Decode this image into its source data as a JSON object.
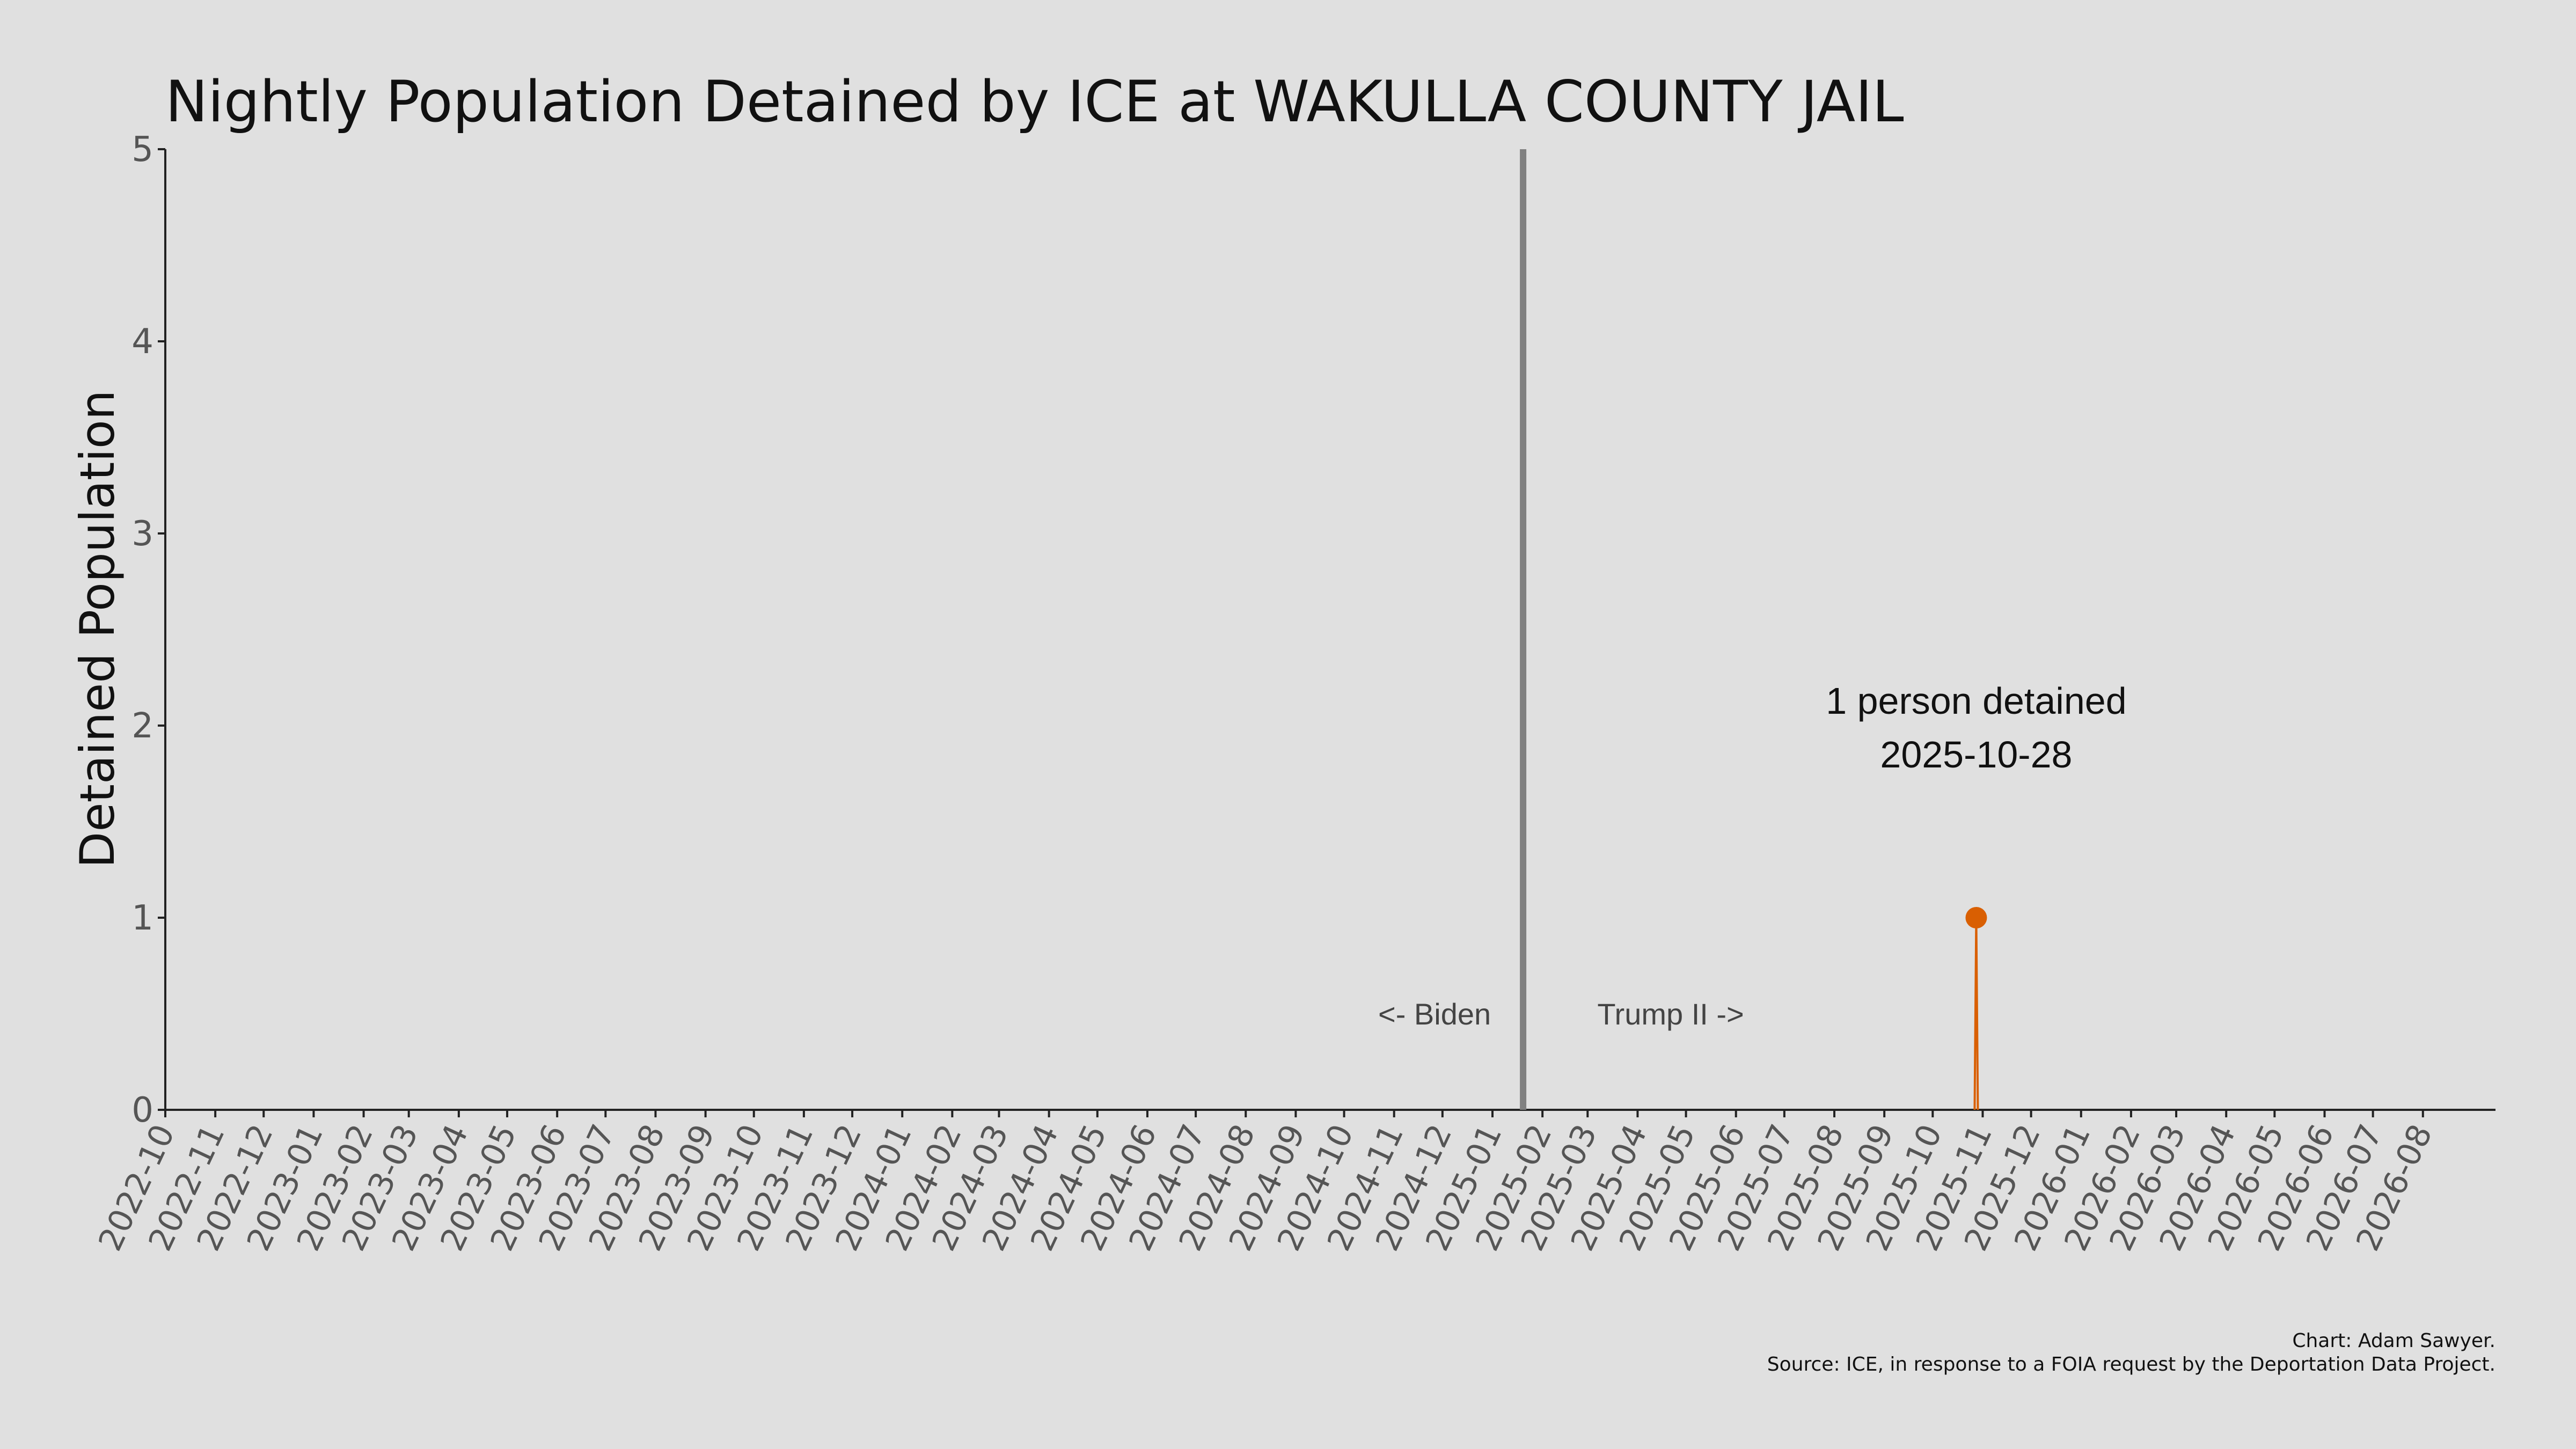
{
  "chart_data": {
    "type": "line",
    "title": "Nightly Population Detained by ICE at WAKULLA COUNTY JAIL",
    "ylabel": "Detained Population",
    "xlabel": "",
    "ylim": [
      0,
      5
    ],
    "yticks": [
      "0",
      "1",
      "2",
      "3",
      "4",
      "5"
    ],
    "xlim": [
      "2022-10-01",
      "2026-09-15"
    ],
    "xticks": [
      "2022-10",
      "2022-11",
      "2022-12",
      "2023-01",
      "2023-02",
      "2023-03",
      "2023-04",
      "2023-05",
      "2023-06",
      "2023-07",
      "2023-08",
      "2023-09",
      "2023-10",
      "2023-11",
      "2023-12",
      "2024-01",
      "2024-02",
      "2024-03",
      "2024-04",
      "2024-05",
      "2024-06",
      "2024-07",
      "2024-08",
      "2024-09",
      "2024-10",
      "2024-11",
      "2024-12",
      "2025-01",
      "2025-02",
      "2025-03",
      "2025-04",
      "2025-05",
      "2025-06",
      "2025-07",
      "2025-08",
      "2025-09",
      "2025-10",
      "2025-11",
      "2025-12",
      "2026-01",
      "2026-02",
      "2026-03",
      "2026-04",
      "2026-05",
      "2026-06",
      "2026-07",
      "2026-08"
    ],
    "series": [
      {
        "x": [
          "2025-10-27",
          "2025-10-28",
          "2025-10-29"
        ],
        "y": [
          0,
          1,
          0
        ]
      }
    ],
    "colors": {
      "series": "#d95f02",
      "divider": "#808080",
      "background": "#e0e0e0"
    },
    "divider": {
      "date": "2025-01-20",
      "left_label": "<- Biden",
      "right_label": "Trump II ->"
    },
    "annotation": {
      "line1": "1 person detained",
      "line2": "2025-10-28",
      "x": "2025-10-28",
      "y": 1
    },
    "grid": false,
    "credit": "Chart: Adam Sawyer.",
    "source": "Source: ICE, in response to a FOIA request by the Deportation Data Project."
  }
}
